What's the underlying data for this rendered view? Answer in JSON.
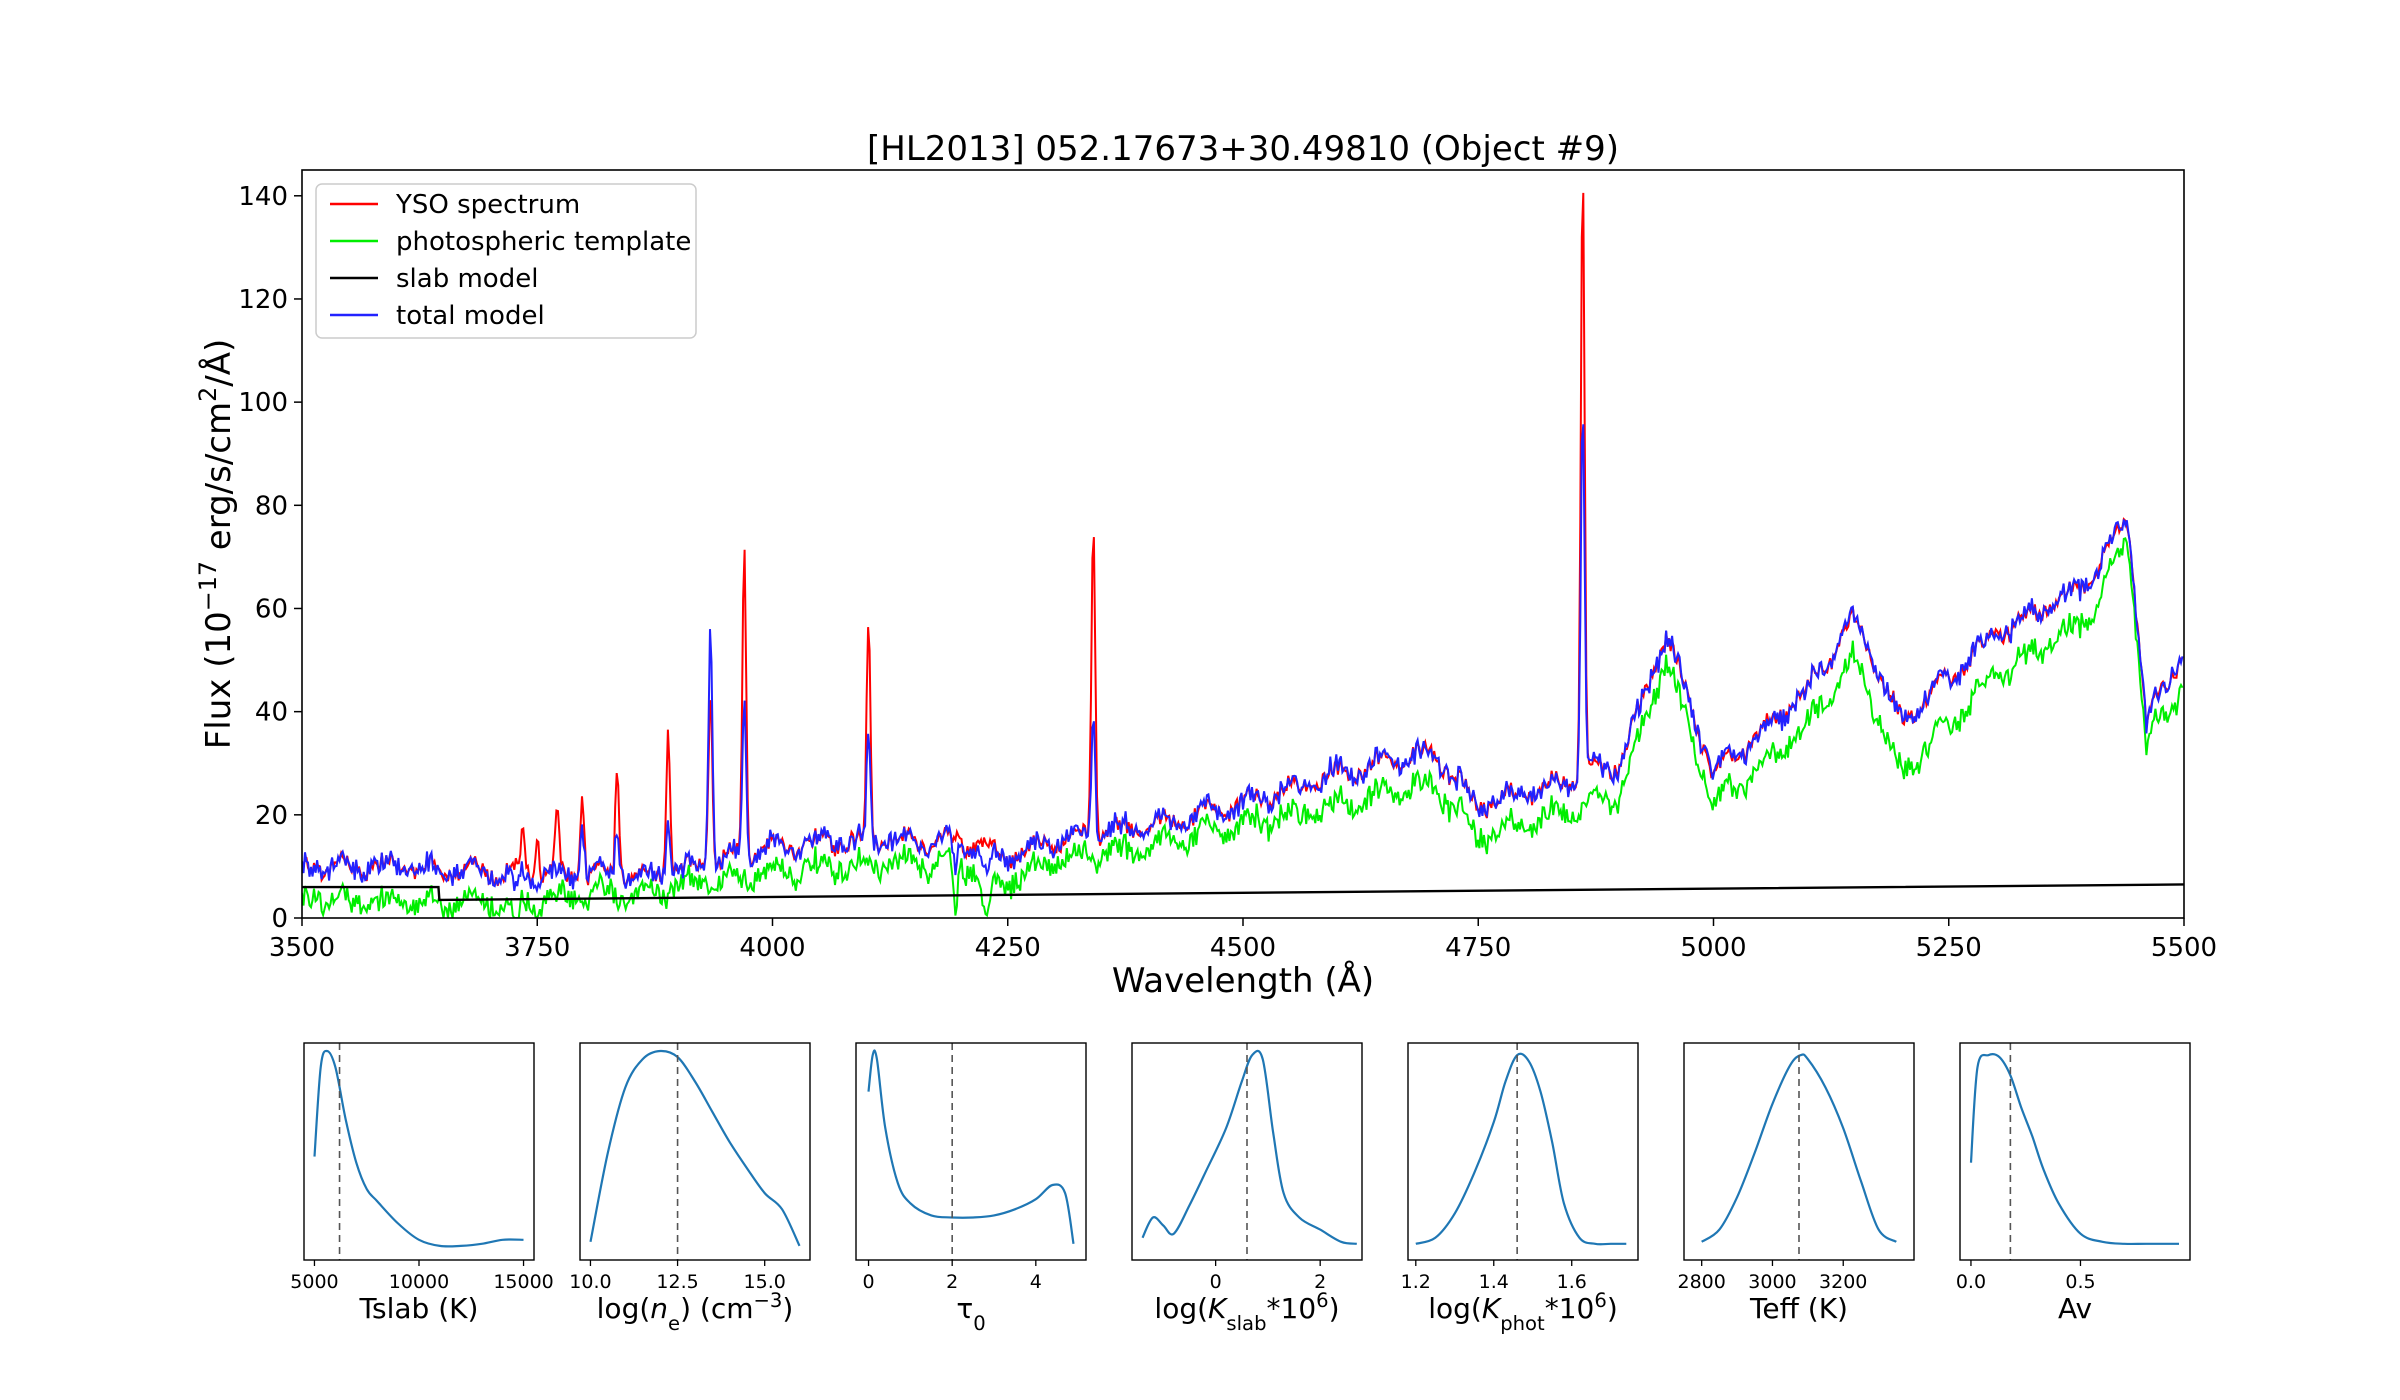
{
  "chart_data": [
    {
      "type": "line",
      "title": "[HL2013] 052.17673+30.49810 (Object #9)",
      "xlabel": "Wavelength (Å)",
      "ylabel_parts": [
        "Flux (10",
        "−17",
        " erg/s/cm",
        "2",
        "/Å)"
      ],
      "xlim": [
        3500,
        5500
      ],
      "ylim": [
        0,
        145
      ],
      "x_ticks": [
        3500,
        3750,
        4000,
        4250,
        4500,
        4750,
        5000,
        5250,
        5500
      ],
      "y_ticks": [
        0,
        20,
        40,
        60,
        80,
        100,
        120,
        140
      ],
      "legend_position": "upper-left",
      "legend": [
        {
          "name": "YSO spectrum",
          "color": "#ff0000"
        },
        {
          "name": "photospheric template",
          "color": "#00ee00"
        },
        {
          "name": "slab model",
          "color": "#000000"
        },
        {
          "name": "total model",
          "color": "#2222ff"
        }
      ],
      "continuum": {
        "x": [
          3500,
          3600,
          3700,
          3800,
          3900,
          4000,
          4100,
          4200,
          4250,
          4300,
          4400,
          4500,
          4600,
          4700,
          4750,
          4800,
          4850,
          4900,
          4950,
          5000,
          5100,
          5150,
          5200,
          5300,
          5400,
          5440,
          5460,
          5500
        ],
        "yso": [
          10,
          10,
          9,
          8,
          9,
          14,
          15,
          15,
          12,
          15,
          18,
          22,
          28,
          32,
          22,
          24,
          27,
          30,
          55,
          28,
          44,
          58,
          38,
          55,
          65,
          78,
          38,
          52
        ],
        "photosphere": [
          4,
          3,
          3,
          4,
          6,
          9,
          10,
          11,
          7,
          11,
          14,
          18,
          22,
          26,
          16,
          18,
          21,
          24,
          50,
          22,
          37,
          50,
          28,
          47,
          58,
          74,
          33,
          46
        ]
      },
      "lines": [
        {
          "x": 3735,
          "yso": 17,
          "total": 0
        },
        {
          "x": 3750,
          "yso": 18,
          "total": 0
        },
        {
          "x": 3771,
          "yso": 21,
          "total": 0
        },
        {
          "x": 3798,
          "yso": 24,
          "total": 18
        },
        {
          "x": 3835,
          "yso": 31,
          "total": 18
        },
        {
          "x": 3889,
          "yso": 38,
          "total": 21
        },
        {
          "x": 3934,
          "yso": 45,
          "total": 58
        },
        {
          "x": 3970,
          "yso": 72,
          "total": 42
        },
        {
          "x": 4102,
          "yso": 57,
          "total": 35
        },
        {
          "x": 4341,
          "yso": 77,
          "total": 40
        },
        {
          "x": 4861,
          "yso": 145,
          "total": 99
        }
      ],
      "slab_model": {
        "x": [
          3500,
          3645,
          3646,
          5500
        ],
        "y": [
          6,
          6,
          3.5,
          6.5
        ]
      }
    },
    {
      "type": "line",
      "name": "posterior-tslab",
      "xlabel": "Tslab (K)",
      "xlim": [
        4500,
        15500
      ],
      "x_ticks": [
        5000,
        10000,
        15000
      ],
      "median": 6200,
      "x": [
        5000,
        5300,
        5600,
        6000,
        6500,
        7000,
        7500,
        8000,
        9000,
        10000,
        11000,
        12000,
        13000,
        14000,
        15000
      ],
      "y": [
        0.48,
        0.92,
        1.0,
        0.92,
        0.66,
        0.45,
        0.32,
        0.26,
        0.15,
        0.07,
        0.04,
        0.04,
        0.05,
        0.07,
        0.07
      ]
    },
    {
      "type": "line",
      "name": "posterior-log-ne",
      "xlabel_parts": [
        "log(",
        "n",
        "e",
        ") (cm",
        "−3",
        ")"
      ],
      "xlim": [
        9.7,
        16.3
      ],
      "x_ticks": [
        10.0,
        12.5,
        15.0
      ],
      "median": 12.5,
      "x": [
        10.0,
        10.5,
        11.0,
        11.5,
        12.0,
        12.5,
        13.0,
        13.5,
        14.0,
        14.5,
        15.0,
        15.5,
        16.0
      ],
      "y": [
        0.06,
        0.5,
        0.82,
        0.96,
        1.0,
        0.97,
        0.85,
        0.7,
        0.55,
        0.42,
        0.3,
        0.22,
        0.04
      ]
    },
    {
      "type": "line",
      "name": "posterior-tau0",
      "xlabel_parts": [
        "τ",
        "0"
      ],
      "xlim": [
        -0.3,
        5.2
      ],
      "x_ticks": [
        0,
        2,
        4
      ],
      "median": 2.0,
      "x": [
        0.0,
        0.1,
        0.2,
        0.4,
        0.7,
        1.0,
        1.5,
        2.0,
        2.5,
        3.0,
        3.5,
        4.0,
        4.4,
        4.7,
        4.9
      ],
      "y": [
        0.8,
        0.98,
        0.96,
        0.62,
        0.35,
        0.25,
        0.19,
        0.18,
        0.18,
        0.19,
        0.22,
        0.27,
        0.34,
        0.3,
        0.05
      ]
    },
    {
      "type": "line",
      "name": "posterior-log-kslab",
      "xlabel_parts": [
        "log(",
        "K",
        "slab",
        "*10",
        "6",
        ")"
      ],
      "xlim": [
        -1.6,
        2.8
      ],
      "x_ticks": [
        0,
        2
      ],
      "median": 0.6,
      "x": [
        -1.4,
        -1.2,
        -1.0,
        -0.8,
        -0.5,
        -0.2,
        0.2,
        0.5,
        0.7,
        0.9,
        1.1,
        1.3,
        1.6,
        2.0,
        2.4,
        2.7
      ],
      "y": [
        0.08,
        0.18,
        0.14,
        0.1,
        0.24,
        0.4,
        0.62,
        0.85,
        0.98,
        0.96,
        0.6,
        0.3,
        0.18,
        0.12,
        0.06,
        0.05
      ]
    },
    {
      "type": "line",
      "name": "posterior-log-kphot",
      "xlabel_parts": [
        "log(",
        "K",
        "phot",
        "*10",
        "6",
        ")"
      ],
      "xlim": [
        1.18,
        1.77
      ],
      "x_ticks": [
        1.2,
        1.4,
        1.6
      ],
      "median": 1.46,
      "x": [
        1.2,
        1.25,
        1.3,
        1.35,
        1.4,
        1.43,
        1.46,
        1.49,
        1.52,
        1.55,
        1.58,
        1.62,
        1.66,
        1.7,
        1.74
      ],
      "y": [
        0.05,
        0.08,
        0.2,
        0.4,
        0.65,
        0.85,
        0.98,
        0.95,
        0.8,
        0.55,
        0.25,
        0.08,
        0.05,
        0.05,
        0.05
      ]
    },
    {
      "type": "line",
      "name": "posterior-teff",
      "xlabel": "Teff (K)",
      "xlim": [
        2750,
        3400
      ],
      "x_ticks": [
        2800,
        3000,
        3200
      ],
      "median": 3075,
      "x": [
        2800,
        2850,
        2900,
        2950,
        3000,
        3050,
        3080,
        3100,
        3150,
        3200,
        3250,
        3300,
        3350
      ],
      "y": [
        0.06,
        0.12,
        0.28,
        0.5,
        0.74,
        0.93,
        0.98,
        0.96,
        0.82,
        0.62,
        0.36,
        0.12,
        0.06
      ]
    },
    {
      "type": "line",
      "name": "posterior-av",
      "xlabel": "Av",
      "xlim": [
        -0.05,
        1.0
      ],
      "x_ticks": [
        0.0,
        0.5
      ],
      "x_tick_labels": [
        "0.0",
        "0.5"
      ],
      "median": 0.18,
      "x": [
        0.0,
        0.03,
        0.08,
        0.13,
        0.18,
        0.23,
        0.28,
        0.33,
        0.4,
        0.5,
        0.6,
        0.7,
        0.8,
        0.95
      ],
      "y": [
        0.45,
        0.92,
        0.98,
        0.97,
        0.88,
        0.72,
        0.58,
        0.42,
        0.25,
        0.1,
        0.06,
        0.05,
        0.05,
        0.05
      ]
    }
  ]
}
